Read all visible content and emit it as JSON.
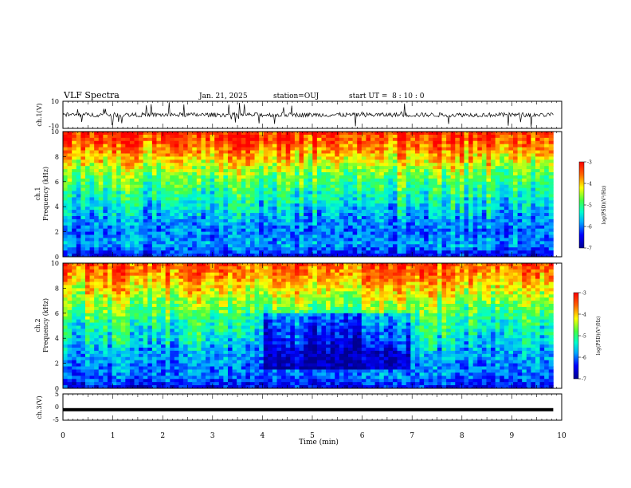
{
  "header": {
    "title": "VLF Spectra",
    "date": "Jan. 21, 2025",
    "station": "station=OUJ",
    "start_ut": "start UT =  8 : 10 : 0"
  },
  "chart_data": [
    {
      "type": "line",
      "panel": "ch1-waveform",
      "ylabel": "ch.1(V)",
      "ylim": [
        -10,
        10
      ],
      "yticks": [
        "10",
        "-10"
      ],
      "x": [
        0,
        9.83
      ],
      "y_center": 0,
      "noise_amplitude": 1,
      "color": "#000000"
    },
    {
      "type": "heatmap",
      "panel": "ch1-spectrogram",
      "ylabel": "ch.1\nFrequency (kHz)",
      "ylim": [
        0,
        10
      ],
      "yticks": [
        "0",
        "2",
        "4",
        "6",
        "8",
        "10"
      ],
      "xlim": [
        0,
        9.83
      ],
      "colorbar": {
        "label": "log(PSD)(V²/Hz)",
        "range": [
          -7,
          -3
        ],
        "ticks": [
          "-3",
          "-4",
          "-5",
          "-6",
          "-7"
        ]
      },
      "profile_log_psd_by_khz": [
        -6.5,
        -5.8,
        -6.0,
        -5.8,
        -5.5,
        -5.2,
        -4.9,
        -4.5,
        -4.0,
        -3.5,
        -3.2
      ],
      "dark_interval_min": []
    },
    {
      "type": "heatmap",
      "panel": "ch2-spectrogram",
      "ylabel": "ch.2\nFrequency (kHz)",
      "ylim": [
        0,
        10
      ],
      "yticks": [
        "0",
        "2",
        "4",
        "6",
        "8",
        "10"
      ],
      "xlim": [
        0,
        9.83
      ],
      "colorbar": {
        "label": "log(PSD)(V²/Hz)",
        "range": [
          -7,
          -3
        ],
        "ticks": [
          "-3",
          "-4",
          "-5",
          "-6",
          "-7"
        ]
      },
      "profile_log_psd_by_khz": [
        -6.5,
        -6.0,
        -5.9,
        -5.7,
        -5.4,
        -5.2,
        -4.9,
        -4.5,
        -4.1,
        -3.7,
        -3.4
      ],
      "dark_interval_min": [
        4.0,
        7.0
      ]
    },
    {
      "type": "line",
      "panel": "ch3-waveform",
      "ylabel": "ch.3(V)",
      "ylim": [
        -5,
        5
      ],
      "yticks": [
        "5",
        "0",
        "-5"
      ],
      "x": [
        0,
        9.83
      ],
      "y": [
        -1,
        -1
      ],
      "color": "#000000"
    }
  ],
  "x_axis": {
    "label": "Time (min)",
    "range": [
      0,
      10
    ],
    "ticks": [
      "0",
      "1",
      "2",
      "3",
      "4",
      "5",
      "6",
      "7",
      "8",
      "9",
      "10"
    ]
  }
}
